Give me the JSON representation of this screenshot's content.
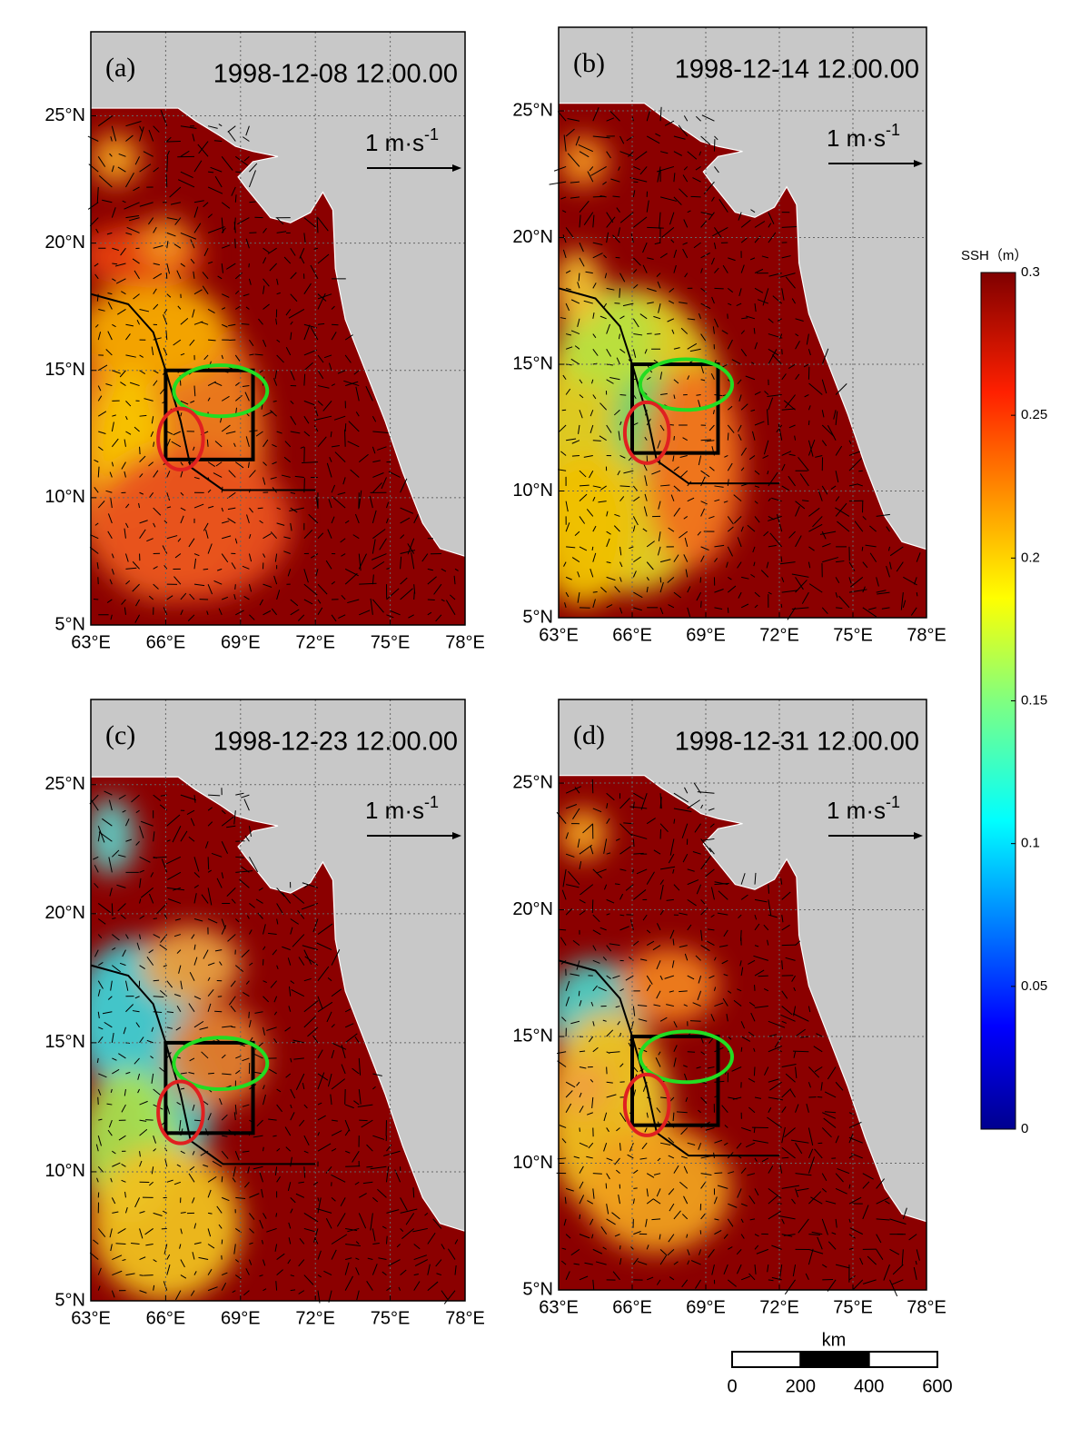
{
  "panels": [
    {
      "label": "(a)",
      "date": "1998-12-08 12.00.00"
    },
    {
      "label": "(b)",
      "date": "1998-12-14 12.00.00"
    },
    {
      "label": "(c)",
      "date": "1998-12-23 12.00.00"
    },
    {
      "label": "(d)",
      "date": "1998-12-31 12.00.00"
    }
  ],
  "map_axes": {
    "xlim": [
      63,
      78
    ],
    "ylim": [
      5,
      28.3
    ],
    "xticks": [
      {
        "value": 63,
        "label": "63°E"
      },
      {
        "value": 66,
        "label": "66°E"
      },
      {
        "value": 69,
        "label": "69°E"
      },
      {
        "value": 72,
        "label": "72°E"
      },
      {
        "value": 75,
        "label": "75°E"
      },
      {
        "value": 78,
        "label": "78°E"
      }
    ],
    "yticks": [
      {
        "value": 5,
        "label": "5°N"
      },
      {
        "value": 10,
        "label": "10°N"
      },
      {
        "value": 15,
        "label": "15°N"
      },
      {
        "value": 20,
        "label": "20°N"
      },
      {
        "value": 25,
        "label": "25°N"
      }
    ]
  },
  "reference_vector": {
    "text": "1 m·s",
    "exponent": "-1"
  },
  "colorbar": {
    "title": "SSH（m）",
    "lim": [
      0,
      0.3
    ],
    "ticks": [
      0,
      0.05,
      0.1,
      0.15,
      0.2,
      0.25,
      0.3
    ]
  },
  "scale_bar": {
    "unit": "km",
    "lim": [
      0,
      600
    ],
    "ticks": [
      0,
      200,
      400,
      600
    ]
  }
}
